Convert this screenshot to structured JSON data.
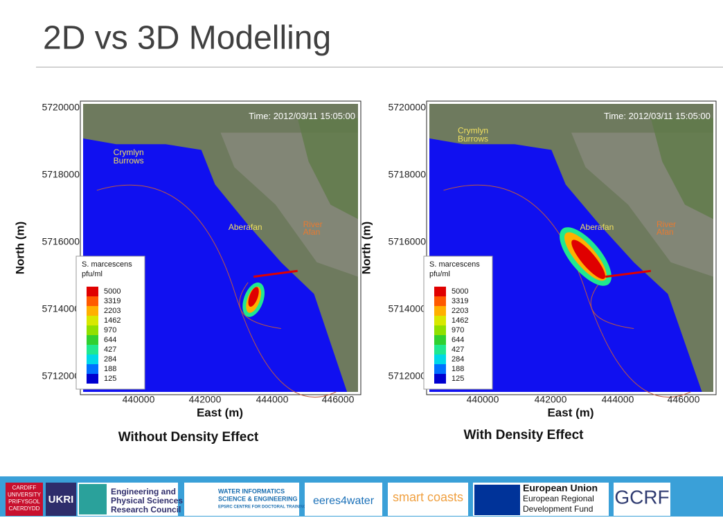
{
  "title": "2D vs 3D Modelling",
  "panels": [
    {
      "time": "Time: 2012/03/11 15:05:00",
      "y_label": "North (m)",
      "x_label": "East (m)",
      "yticks": [
        5720000,
        5718000,
        5716000,
        5714000,
        5712000
      ],
      "xticks": [
        440000,
        442000,
        444000,
        446000
      ],
      "places": {
        "crymlyn": [
          "Crymlyn",
          "Burrows"
        ],
        "aberafan": "Aberafan",
        "river": [
          "River",
          "Afan"
        ]
      },
      "legend_title": [
        "S. marcescens",
        "pfu/ml"
      ],
      "legend": [
        5000,
        3319,
        2203,
        1462,
        970,
        644,
        427,
        284,
        188,
        125
      ],
      "caption": "Without Density Effect"
    },
    {
      "time": "Time: 2012/03/11 15:05:00",
      "y_label": "North (m)",
      "x_label": "East (m)",
      "yticks": [
        5720000,
        5718000,
        5716000,
        5714000,
        5712000
      ],
      "xticks": [
        440000,
        442000,
        444000,
        446000
      ],
      "places": {
        "crymlyn": [
          "Crymlyn",
          "Burrows"
        ],
        "aberafan": "Aberafan",
        "river": [
          "River",
          "Afan"
        ]
      },
      "legend_title": [
        "S. marcescens",
        "pfu/ml"
      ],
      "legend": [
        5000,
        3319,
        2203,
        1462,
        970,
        644,
        427,
        284,
        188,
        125
      ],
      "caption": "With Density Effect"
    }
  ],
  "logos": {
    "cardiff": [
      "CARDIFF",
      "UNIVERSITY",
      "PRIFYSGOL",
      "CAERDYDD"
    ],
    "ukri": "UKRI",
    "epsrc": [
      "Engineering and",
      "Physical Sciences",
      "Research Council"
    ],
    "wise": [
      "WATER INFORMATICS",
      "SCIENCE & ENGINEERING",
      "EPSRC CENTRE FOR DOCTORAL TRAINING"
    ],
    "eeres": "eeres4water",
    "smart": "smart coasts",
    "eu": [
      "European Union",
      "European Regional",
      "Development Fund"
    ],
    "gcrf": "GCRF"
  }
}
